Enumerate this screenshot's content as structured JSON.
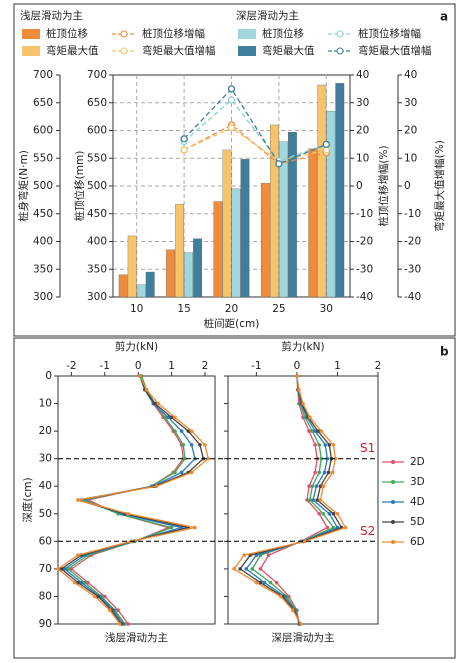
{
  "chart_data": [
    {
      "label": "a",
      "type": "bar",
      "categories": [
        10,
        15,
        20,
        25,
        30
      ],
      "xlabel": "桩间距(cm)",
      "ylabel": "桩身弯矩(N·m)",
      "ylabel_inner": "桩顶位移(mm)",
      "y2label": "桩顶位移增幅(%)",
      "y2label_outer": "弯矩最大值增幅(%)",
      "ylim": [
        300,
        700
      ],
      "yticks": [
        300,
        350,
        400,
        450,
        500,
        550,
        600,
        650,
        700
      ],
      "y2lim": [
        -40,
        40
      ],
      "y2ticks": [
        -40,
        -30,
        -20,
        -10,
        0,
        10,
        20,
        30,
        40
      ],
      "grid": true,
      "groups": [
        {
          "name": "浅层滑动为主",
          "series": [
            {
              "name": "桩顶位移",
              "type": "bar",
              "color": "#f28a3c",
              "values": [
                340,
                385,
                472,
                505,
                567
              ]
            },
            {
              "name": "弯矩最大值",
              "type": "bar",
              "color": "#f7c46c",
              "values": [
                410,
                467,
                565,
                610,
                682
              ]
            },
            {
              "name": "桩顶位移增幅",
              "type": "line",
              "axis": "y2",
              "color": "#f28a3c",
              "values": [
                null,
                13,
                22,
                8,
                12
              ]
            },
            {
              "name": "弯矩最大值增幅",
              "type": "line",
              "axis": "y2",
              "color": "#f7c46c",
              "values": [
                null,
                13,
                21,
                9,
                13
              ]
            }
          ]
        },
        {
          "name": "深层滑动为主",
          "series": [
            {
              "name": "桩顶位移",
              "type": "bar",
              "color": "#9fd7dc",
              "values": [
                322,
                380,
                495,
                580,
                635
              ]
            },
            {
              "name": "弯矩最大值",
              "type": "bar",
              "color": "#3f7f9b",
              "values": [
                345,
                405,
                548,
                597,
                685
              ]
            },
            {
              "name": "桩顶位移增幅",
              "type": "line",
              "axis": "y2",
              "color": "#8fd0d6",
              "values": [
                null,
                16,
                31,
                9,
                15
              ]
            },
            {
              "name": "弯矩最大值增幅",
              "type": "line",
              "axis": "y2",
              "color": "#3f7f9b",
              "values": [
                null,
                17,
                35,
                8,
                15
              ]
            }
          ]
        }
      ]
    },
    {
      "label": "b",
      "type": "line",
      "xlabel": "剪力(kN)",
      "ylabel": "深度(cm)",
      "y": [
        0,
        5,
        10,
        15,
        20,
        25,
        30,
        35,
        40,
        45,
        50,
        55,
        60,
        65,
        70,
        75,
        80,
        85,
        90
      ],
      "ylim": [
        0,
        90
      ],
      "yticks": [
        0,
        10,
        20,
        30,
        40,
        50,
        60,
        70,
        80,
        90
      ],
      "panels": [
        {
          "title": "浅层滑动为主",
          "xlim": [
            -2.4,
            2.3
          ],
          "xticks": [
            -2,
            -1,
            0,
            1,
            2
          ]
        },
        {
          "title": "深层滑动为主",
          "xlim": [
            -1.7,
            2
          ],
          "xticks": [
            -1,
            0,
            1,
            2
          ]
        }
      ],
      "slip_surfaces": [
        {
          "label": "S1",
          "depth": 30
        },
        {
          "label": "S2",
          "depth": 60
        }
      ],
      "series": [
        {
          "name": "2D",
          "color": "#e0506a",
          "values": [
            [
              0.1,
              0.25,
              0.45,
              0.75,
              1.05,
              1.3,
              1.35,
              1.05,
              0.4,
              -1.5,
              -0.6,
              0.9,
              -0.1,
              -1.4,
              -2.0,
              -1.5,
              -1.0,
              -0.6,
              -0.3
            ],
            [
              0,
              0.02,
              0.05,
              0.15,
              0.3,
              0.45,
              0.5,
              0.45,
              0.3,
              0.25,
              0.55,
              0.75,
              0.1,
              -0.7,
              -0.9,
              -0.5,
              -0.2,
              0,
              0.05
            ]
          ]
        },
        {
          "name": "3D",
          "color": "#3aaa5a",
          "values": [
            [
              0.1,
              0.25,
              0.5,
              0.8,
              1.1,
              1.35,
              1.4,
              1.1,
              0.4,
              -1.6,
              -0.6,
              1.0,
              -0.1,
              -1.5,
              -2.1,
              -1.6,
              -1.1,
              -0.7,
              -0.4
            ],
            [
              0,
              0.03,
              0.08,
              0.2,
              0.38,
              0.55,
              0.6,
              0.55,
              0.38,
              0.32,
              0.65,
              0.9,
              0.12,
              -0.9,
              -1.1,
              -0.65,
              -0.25,
              -0.03,
              0.05
            ]
          ]
        },
        {
          "name": "4D",
          "color": "#2a7ab8",
          "values": [
            [
              0.05,
              0.2,
              0.45,
              0.9,
              1.3,
              1.6,
              1.7,
              1.3,
              0.45,
              -1.7,
              -0.5,
              1.3,
              -0.15,
              -1.6,
              -2.2,
              -1.7,
              -1.15,
              -0.75,
              -0.45
            ],
            [
              0,
              0.03,
              0.1,
              0.25,
              0.45,
              0.7,
              0.75,
              0.68,
              0.48,
              0.4,
              0.8,
              1.0,
              0.15,
              -1.0,
              -1.25,
              -0.8,
              -0.3,
              -0.05,
              0.07
            ]
          ]
        },
        {
          "name": "5D",
          "color": "#444444",
          "values": [
            [
              0.05,
              0.2,
              0.5,
              1.0,
              1.5,
              1.85,
              1.95,
              1.5,
              0.5,
              -1.8,
              -0.4,
              1.5,
              -0.2,
              -1.7,
              -2.3,
              -1.8,
              -1.2,
              -0.8,
              -0.5
            ],
            [
              0,
              0.04,
              0.12,
              0.28,
              0.52,
              0.8,
              0.85,
              0.78,
              0.58,
              0.5,
              0.9,
              1.1,
              0.18,
              -1.15,
              -1.4,
              -0.9,
              -0.35,
              -0.08,
              0.08
            ]
          ]
        },
        {
          "name": "6D",
          "color": "#f08a30",
          "values": [
            [
              0.05,
              0.25,
              0.6,
              1.1,
              1.6,
              2.0,
              2.1,
              1.6,
              0.55,
              -1.8,
              -0.3,
              1.7,
              -0.2,
              -1.8,
              -2.4,
              -1.9,
              -1.3,
              -0.85,
              -0.55
            ],
            [
              0,
              0.05,
              0.15,
              0.32,
              0.6,
              0.9,
              0.95,
              0.88,
              0.65,
              0.58,
              1.0,
              1.2,
              0.2,
              -1.3,
              -1.55,
              -1.0,
              -0.4,
              -0.1,
              0.1
            ]
          ]
        }
      ]
    }
  ]
}
